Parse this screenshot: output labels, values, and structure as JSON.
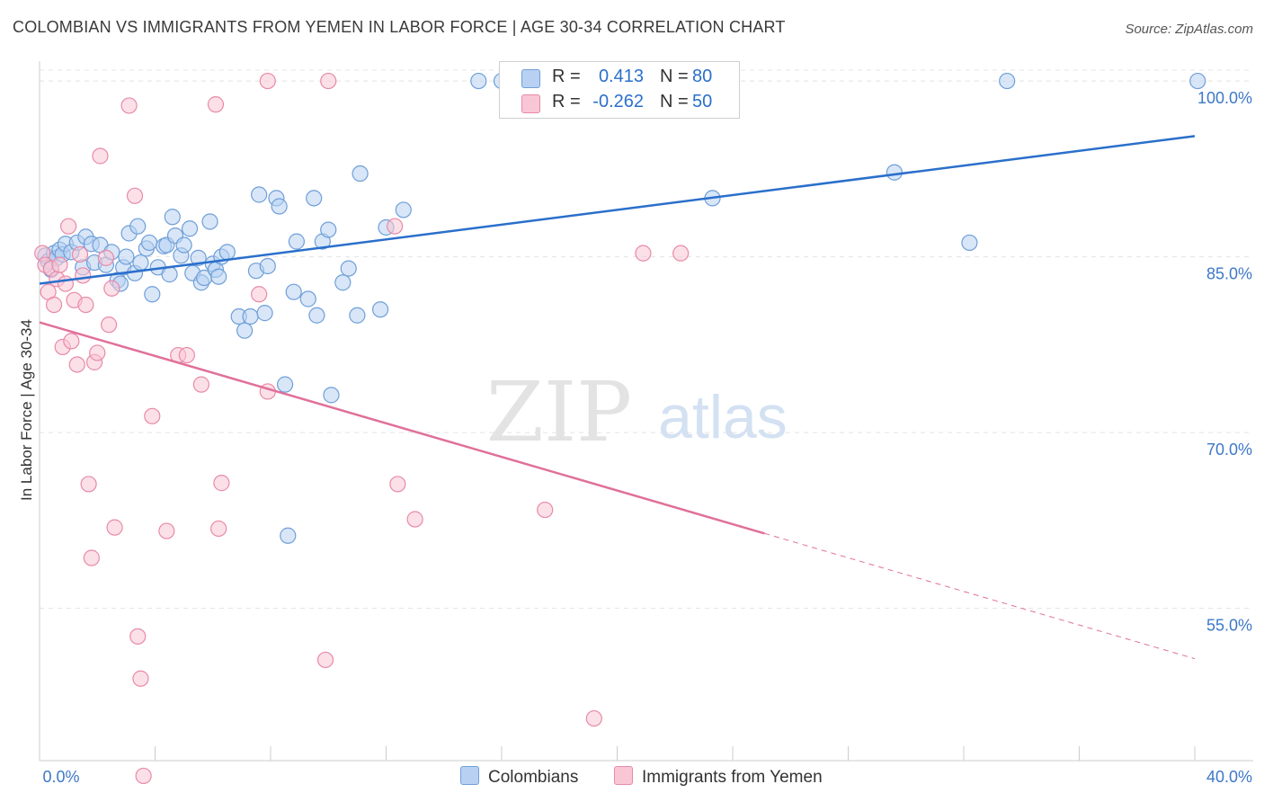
{
  "title": "COLOMBIAN VS IMMIGRANTS FROM YEMEN IN LABOR FORCE | AGE 30-34 CORRELATION CHART",
  "source": "Source: ZipAtlas.com",
  "watermark": {
    "zip": "ZIP",
    "atlas": "atlas"
  },
  "legend": {
    "r_label": "R =",
    "n_label": "N =",
    "series": [
      {
        "name": "Colombians",
        "r": "0.413",
        "n": "80",
        "fill": "#b8d1f3",
        "stroke": "#6f9fd8",
        "line": "#2a6fcb"
      },
      {
        "name": "Immigrants from Yemen",
        "r": "-0.262",
        "n": "50",
        "fill": "#f9c6d6",
        "stroke": "#e88aa8",
        "line": "#e0709a"
      }
    ]
  },
  "chart_data": {
    "type": "scatter",
    "title": "COLOMBIAN VS IMMIGRANTS FROM YEMEN IN LABOR FORCE | AGE 30-34 CORRELATION CHART",
    "xlabel": "",
    "ylabel": "In Labor Force | Age 30-34",
    "xlim": [
      0,
      40
    ],
    "ylim": [
      42,
      102
    ],
    "x_tick_labels": [
      "0.0%",
      "40.0%"
    ],
    "y_ticks": [
      55,
      70,
      85,
      100
    ],
    "y_tick_labels": [
      "55.0%",
      "70.0%",
      "85.0%",
      "100.0%"
    ],
    "grid": true,
    "series": [
      {
        "name": "Colombians",
        "trend": {
          "x0": 0,
          "y0": 82.7,
          "x1": 40,
          "y1": 95.3,
          "dashed_from": null
        },
        "points": [
          [
            0.2,
            85.1
          ],
          [
            0.3,
            84.6
          ],
          [
            0.4,
            83.9
          ],
          [
            0.5,
            85.3
          ],
          [
            0.6,
            84.9
          ],
          [
            0.7,
            85.6
          ],
          [
            0.8,
            85.2
          ],
          [
            0.9,
            86.1
          ],
          [
            1.1,
            85.4
          ],
          [
            1.3,
            86.2
          ],
          [
            1.5,
            84.1
          ],
          [
            1.6,
            86.7
          ],
          [
            1.8,
            86.1
          ],
          [
            1.9,
            84.5
          ],
          [
            2.1,
            86.0
          ],
          [
            2.3,
            84.3
          ],
          [
            2.5,
            85.4
          ],
          [
            2.7,
            83.0
          ],
          [
            2.8,
            82.7
          ],
          [
            2.9,
            84.1
          ],
          [
            3.0,
            85.0
          ],
          [
            3.1,
            87.0
          ],
          [
            3.3,
            83.6
          ],
          [
            3.4,
            87.6
          ],
          [
            3.5,
            84.5
          ],
          [
            3.7,
            85.7
          ],
          [
            3.8,
            86.2
          ],
          [
            3.9,
            81.8
          ],
          [
            4.1,
            84.1
          ],
          [
            4.3,
            85.9
          ],
          [
            4.4,
            86.0
          ],
          [
            4.5,
            83.5
          ],
          [
            4.6,
            88.4
          ],
          [
            4.7,
            86.8
          ],
          [
            4.9,
            85.1
          ],
          [
            5.0,
            86.0
          ],
          [
            5.2,
            87.4
          ],
          [
            5.3,
            83.6
          ],
          [
            5.5,
            84.9
          ],
          [
            5.6,
            82.8
          ],
          [
            5.7,
            83.2
          ],
          [
            5.9,
            88.0
          ],
          [
            6.0,
            84.4
          ],
          [
            6.1,
            83.9
          ],
          [
            6.2,
            83.3
          ],
          [
            6.3,
            85.0
          ],
          [
            6.5,
            85.4
          ],
          [
            6.9,
            79.9
          ],
          [
            7.1,
            78.7
          ],
          [
            7.3,
            79.9
          ],
          [
            7.5,
            83.8
          ],
          [
            7.6,
            90.3
          ],
          [
            7.8,
            80.2
          ],
          [
            7.9,
            84.2
          ],
          [
            8.2,
            90.0
          ],
          [
            8.3,
            89.3
          ],
          [
            8.5,
            74.1
          ],
          [
            8.6,
            61.2
          ],
          [
            8.8,
            82.0
          ],
          [
            8.9,
            86.3
          ],
          [
            9.3,
            81.4
          ],
          [
            9.5,
            90.0
          ],
          [
            9.6,
            80.0
          ],
          [
            9.8,
            86.3
          ],
          [
            10.0,
            87.3
          ],
          [
            10.1,
            73.2
          ],
          [
            10.5,
            82.8
          ],
          [
            10.7,
            84.0
          ],
          [
            11.0,
            80.0
          ],
          [
            11.1,
            92.1
          ],
          [
            11.8,
            80.5
          ],
          [
            12.0,
            87.5
          ],
          [
            12.6,
            89.0
          ],
          [
            15.2,
            100.0
          ],
          [
            16.0,
            100.0
          ],
          [
            23.3,
            90.0
          ],
          [
            29.6,
            92.2
          ],
          [
            32.2,
            86.2
          ],
          [
            33.5,
            100.0
          ],
          [
            40.1,
            100.0
          ]
        ]
      },
      {
        "name": "Immigrants from Yemen",
        "trend": {
          "x0": 0,
          "y0": 79.4,
          "x1": 40,
          "y1": 50.7,
          "dashed_from": 25.1
        },
        "points": [
          [
            0.1,
            85.3
          ],
          [
            0.2,
            84.3
          ],
          [
            0.3,
            82.0
          ],
          [
            0.4,
            84.0
          ],
          [
            0.5,
            80.9
          ],
          [
            0.6,
            83.1
          ],
          [
            0.7,
            84.3
          ],
          [
            0.8,
            77.3
          ],
          [
            0.9,
            82.7
          ],
          [
            1.0,
            87.6
          ],
          [
            1.1,
            77.8
          ],
          [
            1.2,
            81.3
          ],
          [
            1.3,
            75.8
          ],
          [
            1.4,
            85.2
          ],
          [
            1.5,
            83.4
          ],
          [
            1.6,
            80.9
          ],
          [
            1.7,
            65.6
          ],
          [
            1.8,
            59.3
          ],
          [
            1.9,
            76.0
          ],
          [
            2.0,
            76.8
          ],
          [
            2.1,
            93.6
          ],
          [
            2.3,
            84.9
          ],
          [
            2.4,
            79.2
          ],
          [
            2.5,
            82.3
          ],
          [
            2.6,
            61.9
          ],
          [
            3.1,
            97.9
          ],
          [
            3.3,
            90.2
          ],
          [
            3.4,
            52.6
          ],
          [
            3.5,
            49.0
          ],
          [
            3.6,
            40.7
          ],
          [
            3.9,
            71.4
          ],
          [
            4.4,
            61.6
          ],
          [
            4.8,
            76.6
          ],
          [
            5.1,
            76.6
          ],
          [
            5.6,
            74.1
          ],
          [
            6.1,
            98.0
          ],
          [
            6.2,
            61.8
          ],
          [
            6.3,
            65.7
          ],
          [
            7.6,
            81.8
          ],
          [
            7.9,
            73.5
          ],
          [
            7.9,
            100.0
          ],
          [
            9.9,
            50.6
          ],
          [
            10.0,
            100.0
          ],
          [
            12.3,
            87.6
          ],
          [
            12.4,
            65.6
          ],
          [
            13.0,
            62.6
          ],
          [
            17.5,
            63.4
          ],
          [
            19.2,
            45.6
          ],
          [
            20.9,
            85.3
          ],
          [
            22.2,
            85.3
          ]
        ]
      }
    ]
  }
}
